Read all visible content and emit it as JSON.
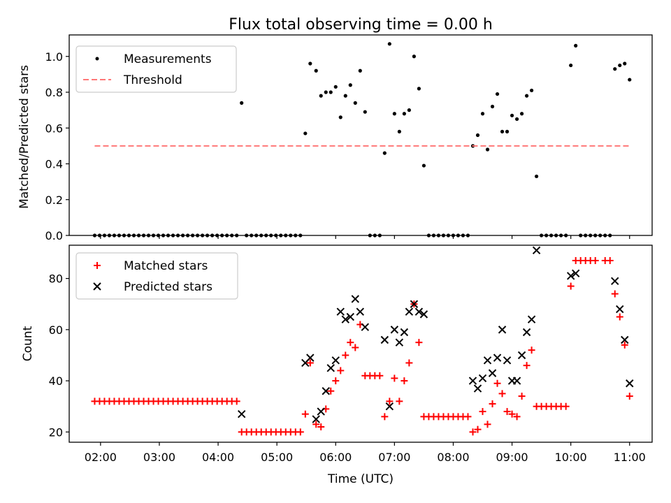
{
  "chart_data": [
    {
      "type": "scatter",
      "title": "Flux total observing time = 0.00 h",
      "xlabel": "",
      "ylabel": "Matched/Predicted stars",
      "x_unit": "UTC time",
      "xlim": [
        "01:28",
        "11:23"
      ],
      "ylim": [
        0,
        1.12
      ],
      "yticks": [
        "0.0",
        "0.2",
        "0.4",
        "0.6",
        "0.8",
        "1.0"
      ],
      "grid": false,
      "legend_position": "upper-left",
      "series": [
        {
          "name": "Measurements",
          "marker": "dot",
          "color": "#000000",
          "points": [
            [
              "01:54",
              0
            ],
            [
              "01:59",
              0
            ],
            [
              "02:04",
              0
            ],
            [
              "02:09",
              0
            ],
            [
              "02:14",
              0
            ],
            [
              "02:19",
              0
            ],
            [
              "02:24",
              0
            ],
            [
              "02:29",
              0
            ],
            [
              "02:34",
              0
            ],
            [
              "02:39",
              0
            ],
            [
              "02:44",
              0
            ],
            [
              "02:49",
              0
            ],
            [
              "02:54",
              0
            ],
            [
              "02:59",
              0
            ],
            [
              "03:04",
              0
            ],
            [
              "03:09",
              0
            ],
            [
              "03:14",
              0
            ],
            [
              "03:19",
              0
            ],
            [
              "03:24",
              0
            ],
            [
              "03:29",
              0
            ],
            [
              "03:34",
              0
            ],
            [
              "03:39",
              0
            ],
            [
              "03:44",
              0
            ],
            [
              "03:49",
              0
            ],
            [
              "03:54",
              0
            ],
            [
              "03:59",
              0
            ],
            [
              "04:04",
              0
            ],
            [
              "04:09",
              0
            ],
            [
              "04:14",
              0
            ],
            [
              "04:19",
              0
            ],
            [
              "04:24",
              0.74
            ],
            [
              "04:29",
              0
            ],
            [
              "04:34",
              0
            ],
            [
              "04:39",
              0
            ],
            [
              "04:44",
              0
            ],
            [
              "04:49",
              0
            ],
            [
              "04:54",
              0
            ],
            [
              "04:59",
              0
            ],
            [
              "05:04",
              0
            ],
            [
              "05:09",
              0
            ],
            [
              "05:14",
              0
            ],
            [
              "05:19",
              0
            ],
            [
              "05:24",
              0
            ],
            [
              "05:29",
              0.57
            ],
            [
              "05:34",
              0.96
            ],
            [
              "05:40",
              0.92
            ],
            [
              "05:45",
              0.78
            ],
            [
              "05:50",
              0.8
            ],
            [
              "05:55",
              0.8
            ],
            [
              "06:00",
              0.83
            ],
            [
              "06:05",
              0.66
            ],
            [
              "06:10",
              0.78
            ],
            [
              "06:15",
              0.84
            ],
            [
              "06:20",
              0.74
            ],
            [
              "06:25",
              0.92
            ],
            [
              "06:30",
              0.69
            ],
            [
              "06:35",
              0
            ],
            [
              "06:40",
              0
            ],
            [
              "06:45",
              0
            ],
            [
              "06:50",
              0.46
            ],
            [
              "06:55",
              1.07
            ],
            [
              "07:00",
              0.68
            ],
            [
              "07:05",
              0.58
            ],
            [
              "07:10",
              0.68
            ],
            [
              "07:15",
              0.7
            ],
            [
              "07:20",
              1.0
            ],
            [
              "07:25",
              0.82
            ],
            [
              "07:30",
              0.39
            ],
            [
              "07:35",
              0
            ],
            [
              "07:40",
              0
            ],
            [
              "07:45",
              0
            ],
            [
              "07:50",
              0
            ],
            [
              "07:55",
              0
            ],
            [
              "08:00",
              0
            ],
            [
              "08:05",
              0
            ],
            [
              "08:10",
              0
            ],
            [
              "08:15",
              0
            ],
            [
              "08:20",
              0.5
            ],
            [
              "08:25",
              0.56
            ],
            [
              "08:30",
              0.68
            ],
            [
              "08:35",
              0.48
            ],
            [
              "08:40",
              0.72
            ],
            [
              "08:45",
              0.79
            ],
            [
              "08:50",
              0.58
            ],
            [
              "08:55",
              0.58
            ],
            [
              "09:00",
              0.67
            ],
            [
              "09:05",
              0.65
            ],
            [
              "09:10",
              0.68
            ],
            [
              "09:15",
              0.78
            ],
            [
              "09:20",
              0.81
            ],
            [
              "09:25",
              0.33
            ],
            [
              "09:30",
              0
            ],
            [
              "09:35",
              0
            ],
            [
              "09:40",
              0
            ],
            [
              "09:45",
              0
            ],
            [
              "09:50",
              0
            ],
            [
              "09:55",
              0
            ],
            [
              "10:00",
              0.95
            ],
            [
              "10:05",
              1.06
            ],
            [
              "10:10",
              0
            ],
            [
              "10:15",
              0
            ],
            [
              "10:20",
              0
            ],
            [
              "10:25",
              0
            ],
            [
              "10:30",
              0
            ],
            [
              "10:35",
              0
            ],
            [
              "10:40",
              0
            ],
            [
              "10:45",
              0.93
            ],
            [
              "10:50",
              0.95
            ],
            [
              "10:55",
              0.96
            ],
            [
              "11:00",
              0.87
            ]
          ]
        },
        {
          "name": "Threshold",
          "marker": "dashed-line",
          "color": "#ff7777",
          "points": [
            [
              "01:54",
              0.5
            ],
            [
              "11:00",
              0.5
            ]
          ]
        }
      ]
    },
    {
      "type": "scatter",
      "title": "",
      "xlabel": "Time (UTC)",
      "ylabel": "Count",
      "x_unit": "UTC time",
      "xlim": [
        "01:28",
        "11:23"
      ],
      "ylim": [
        16,
        93
      ],
      "yticks": [
        "20",
        "40",
        "60",
        "80"
      ],
      "xticks": [
        "02:00",
        "03:00",
        "04:00",
        "05:00",
        "06:00",
        "07:00",
        "08:00",
        "09:00",
        "10:00",
        "11:00"
      ],
      "grid": false,
      "legend_position": "upper-left",
      "series": [
        {
          "name": "Matched stars",
          "marker": "plus",
          "color": "#ff0000",
          "points": [
            [
              "01:54",
              32
            ],
            [
              "01:59",
              32
            ],
            [
              "02:04",
              32
            ],
            [
              "02:09",
              32
            ],
            [
              "02:14",
              32
            ],
            [
              "02:19",
              32
            ],
            [
              "02:24",
              32
            ],
            [
              "02:29",
              32
            ],
            [
              "02:34",
              32
            ],
            [
              "02:39",
              32
            ],
            [
              "02:44",
              32
            ],
            [
              "02:49",
              32
            ],
            [
              "02:54",
              32
            ],
            [
              "02:59",
              32
            ],
            [
              "03:04",
              32
            ],
            [
              "03:09",
              32
            ],
            [
              "03:14",
              32
            ],
            [
              "03:19",
              32
            ],
            [
              "03:24",
              32
            ],
            [
              "03:29",
              32
            ],
            [
              "03:34",
              32
            ],
            [
              "03:39",
              32
            ],
            [
              "03:44",
              32
            ],
            [
              "03:49",
              32
            ],
            [
              "03:54",
              32
            ],
            [
              "03:59",
              32
            ],
            [
              "04:04",
              32
            ],
            [
              "04:09",
              32
            ],
            [
              "04:14",
              32
            ],
            [
              "04:19",
              32
            ],
            [
              "04:24",
              20
            ],
            [
              "04:29",
              20
            ],
            [
              "04:34",
              20
            ],
            [
              "04:39",
              20
            ],
            [
              "04:44",
              20
            ],
            [
              "04:49",
              20
            ],
            [
              "04:54",
              20
            ],
            [
              "04:59",
              20
            ],
            [
              "05:04",
              20
            ],
            [
              "05:09",
              20
            ],
            [
              "05:14",
              20
            ],
            [
              "05:19",
              20
            ],
            [
              "05:24",
              20
            ],
            [
              "05:29",
              27
            ],
            [
              "05:34",
              47
            ],
            [
              "05:40",
              23
            ],
            [
              "05:45",
              22
            ],
            [
              "05:50",
              29
            ],
            [
              "05:55",
              36
            ],
            [
              "06:00",
              40
            ],
            [
              "06:05",
              44
            ],
            [
              "06:10",
              50
            ],
            [
              "06:15",
              55
            ],
            [
              "06:20",
              53
            ],
            [
              "06:25",
              62
            ],
            [
              "06:30",
              42
            ],
            [
              "06:35",
              42
            ],
            [
              "06:40",
              42
            ],
            [
              "06:45",
              42
            ],
            [
              "06:50",
              26
            ],
            [
              "06:55",
              32
            ],
            [
              "07:00",
              41
            ],
            [
              "07:05",
              32
            ],
            [
              "07:10",
              40
            ],
            [
              "07:15",
              47
            ],
            [
              "07:20",
              70
            ],
            [
              "07:25",
              55
            ],
            [
              "07:30",
              26
            ],
            [
              "07:35",
              26
            ],
            [
              "07:40",
              26
            ],
            [
              "07:45",
              26
            ],
            [
              "07:50",
              26
            ],
            [
              "07:55",
              26
            ],
            [
              "08:00",
              26
            ],
            [
              "08:05",
              26
            ],
            [
              "08:10",
              26
            ],
            [
              "08:15",
              26
            ],
            [
              "08:20",
              20
            ],
            [
              "08:25",
              21
            ],
            [
              "08:30",
              28
            ],
            [
              "08:35",
              23
            ],
            [
              "08:40",
              31
            ],
            [
              "08:45",
              39
            ],
            [
              "08:50",
              35
            ],
            [
              "08:55",
              28
            ],
            [
              "09:00",
              27
            ],
            [
              "09:05",
              26
            ],
            [
              "09:10",
              34
            ],
            [
              "09:15",
              46
            ],
            [
              "09:20",
              52
            ],
            [
              "09:25",
              30
            ],
            [
              "09:30",
              30
            ],
            [
              "09:35",
              30
            ],
            [
              "09:40",
              30
            ],
            [
              "09:45",
              30
            ],
            [
              "09:50",
              30
            ],
            [
              "09:55",
              30
            ],
            [
              "10:00",
              77
            ],
            [
              "10:05",
              87
            ],
            [
              "10:10",
              87
            ],
            [
              "10:15",
              87
            ],
            [
              "10:20",
              87
            ],
            [
              "10:25",
              87
            ],
            [
              "10:35",
              87
            ],
            [
              "10:40",
              87
            ],
            [
              "10:45",
              74
            ],
            [
              "10:50",
              65
            ],
            [
              "10:55",
              54
            ],
            [
              "11:00",
              34
            ]
          ]
        },
        {
          "name": "Predicted stars",
          "marker": "x",
          "color": "#000000",
          "points": [
            [
              "04:24",
              27
            ],
            [
              "05:29",
              47
            ],
            [
              "05:34",
              49
            ],
            [
              "05:40",
              25
            ],
            [
              "05:45",
              28
            ],
            [
              "05:50",
              36
            ],
            [
              "05:55",
              45
            ],
            [
              "06:00",
              48
            ],
            [
              "06:05",
              67
            ],
            [
              "06:10",
              64
            ],
            [
              "06:15",
              65
            ],
            [
              "06:20",
              72
            ],
            [
              "06:25",
              67
            ],
            [
              "06:30",
              61
            ],
            [
              "06:50",
              56
            ],
            [
              "06:55",
              30
            ],
            [
              "07:00",
              60
            ],
            [
              "07:05",
              55
            ],
            [
              "07:10",
              59
            ],
            [
              "07:15",
              67
            ],
            [
              "07:20",
              70
            ],
            [
              "07:25",
              67
            ],
            [
              "07:30",
              66
            ],
            [
              "08:20",
              40
            ],
            [
              "08:25",
              37
            ],
            [
              "08:30",
              41
            ],
            [
              "08:35",
              48
            ],
            [
              "08:40",
              43
            ],
            [
              "08:45",
              49
            ],
            [
              "08:50",
              60
            ],
            [
              "08:55",
              48
            ],
            [
              "09:00",
              40
            ],
            [
              "09:05",
              40
            ],
            [
              "09:10",
              50
            ],
            [
              "09:15",
              59
            ],
            [
              "09:20",
              64
            ],
            [
              "09:25",
              91
            ],
            [
              "10:00",
              81
            ],
            [
              "10:05",
              82
            ],
            [
              "10:45",
              79
            ],
            [
              "10:50",
              68
            ],
            [
              "10:55",
              56
            ],
            [
              "11:00",
              39
            ]
          ]
        }
      ]
    }
  ]
}
